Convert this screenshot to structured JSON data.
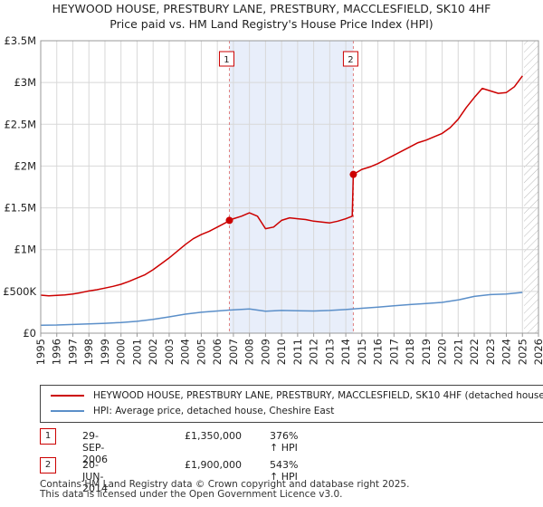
{
  "title_line1": "HEYWOOD HOUSE, PRESTBURY LANE, PRESTBURY, MACCLESFIELD, SK10 4HF",
  "title_line2": "Price paid vs. HM Land Registry's House Price Index (HPI)",
  "chart_data": {
    "type": "line",
    "xlim": [
      1995,
      2026
    ],
    "ylim": [
      0,
      3500000
    ],
    "yticks": [
      {
        "value": 0,
        "label": "£0"
      },
      {
        "value": 500000,
        "label": "£500K"
      },
      {
        "value": 1000000,
        "label": "£1M"
      },
      {
        "value": 1500000,
        "label": "£1.5M"
      },
      {
        "value": 2000000,
        "label": "£2M"
      },
      {
        "value": 2500000,
        "label": "£2.5M"
      },
      {
        "value": 3000000,
        "label": "£3M"
      },
      {
        "value": 3500000,
        "label": "£3.5M"
      }
    ],
    "xticks": [
      "1995",
      "1996",
      "1997",
      "1998",
      "1999",
      "2000",
      "2001",
      "2002",
      "2003",
      "2004",
      "2005",
      "2006",
      "2007",
      "2008",
      "2009",
      "2010",
      "2011",
      "2012",
      "2013",
      "2014",
      "2015",
      "2016",
      "2017",
      "2018",
      "2019",
      "2020",
      "2021",
      "2022",
      "2023",
      "2024",
      "2025",
      "2026"
    ],
    "shaded_span": [
      2006.75,
      2014.47
    ],
    "future_hatch_from": 2025.1,
    "series": [
      {
        "name": "HEYWOOD HOUSE, PRESTBURY LANE, PRESTBURY, MACCLESFIELD, SK10 4HF (detached house)",
        "color": "#cc0000",
        "points": [
          [
            1995.0,
            455000
          ],
          [
            1995.5,
            448000
          ],
          [
            1996.0,
            452000
          ],
          [
            1996.5,
            458000
          ],
          [
            1997.0,
            468000
          ],
          [
            1997.5,
            485000
          ],
          [
            1998.0,
            505000
          ],
          [
            1998.5,
            520000
          ],
          [
            1999.0,
            540000
          ],
          [
            1999.5,
            560000
          ],
          [
            2000.0,
            585000
          ],
          [
            2000.5,
            620000
          ],
          [
            2001.0,
            660000
          ],
          [
            2001.5,
            700000
          ],
          [
            2002.0,
            760000
          ],
          [
            2002.5,
            830000
          ],
          [
            2003.0,
            900000
          ],
          [
            2003.5,
            980000
          ],
          [
            2004.0,
            1060000
          ],
          [
            2004.5,
            1130000
          ],
          [
            2005.0,
            1180000
          ],
          [
            2005.5,
            1220000
          ],
          [
            2006.0,
            1270000
          ],
          [
            2006.5,
            1320000
          ],
          [
            2006.75,
            1350000
          ],
          [
            2007.0,
            1370000
          ],
          [
            2007.5,
            1400000
          ],
          [
            2008.0,
            1440000
          ],
          [
            2008.5,
            1400000
          ],
          [
            2009.0,
            1250000
          ],
          [
            2009.5,
            1270000
          ],
          [
            2010.0,
            1350000
          ],
          [
            2010.5,
            1380000
          ],
          [
            2011.0,
            1370000
          ],
          [
            2011.5,
            1360000
          ],
          [
            2012.0,
            1340000
          ],
          [
            2012.5,
            1330000
          ],
          [
            2013.0,
            1320000
          ],
          [
            2013.5,
            1340000
          ],
          [
            2014.0,
            1370000
          ],
          [
            2014.4,
            1400000
          ],
          [
            2014.47,
            1900000
          ],
          [
            2015.0,
            1960000
          ],
          [
            2015.5,
            1990000
          ],
          [
            2016.0,
            2030000
          ],
          [
            2016.5,
            2080000
          ],
          [
            2017.0,
            2130000
          ],
          [
            2017.5,
            2180000
          ],
          [
            2018.0,
            2230000
          ],
          [
            2018.5,
            2280000
          ],
          [
            2019.0,
            2310000
          ],
          [
            2019.5,
            2350000
          ],
          [
            2020.0,
            2390000
          ],
          [
            2020.5,
            2460000
          ],
          [
            2021.0,
            2560000
          ],
          [
            2021.5,
            2700000
          ],
          [
            2022.0,
            2820000
          ],
          [
            2022.5,
            2930000
          ],
          [
            2023.0,
            2900000
          ],
          [
            2023.5,
            2870000
          ],
          [
            2024.0,
            2880000
          ],
          [
            2024.5,
            2950000
          ],
          [
            2025.0,
            3080000
          ]
        ]
      },
      {
        "name": "HPI: Average price, detached house, Cheshire East",
        "color": "#5b8fc9",
        "points": [
          [
            1995.0,
            95000
          ],
          [
            1996.0,
            98000
          ],
          [
            1997.0,
            104000
          ],
          [
            1998.0,
            110000
          ],
          [
            1999.0,
            118000
          ],
          [
            2000.0,
            128000
          ],
          [
            2001.0,
            142000
          ],
          [
            2002.0,
            165000
          ],
          [
            2003.0,
            195000
          ],
          [
            2004.0,
            228000
          ],
          [
            2005.0,
            250000
          ],
          [
            2006.0,
            265000
          ],
          [
            2007.0,
            280000
          ],
          [
            2008.0,
            290000
          ],
          [
            2009.0,
            262000
          ],
          [
            2010.0,
            272000
          ],
          [
            2011.0,
            268000
          ],
          [
            2012.0,
            266000
          ],
          [
            2013.0,
            272000
          ],
          [
            2014.0,
            283000
          ],
          [
            2015.0,
            298000
          ],
          [
            2016.0,
            312000
          ],
          [
            2017.0,
            328000
          ],
          [
            2018.0,
            342000
          ],
          [
            2019.0,
            355000
          ],
          [
            2020.0,
            368000
          ],
          [
            2021.0,
            398000
          ],
          [
            2022.0,
            440000
          ],
          [
            2023.0,
            462000
          ],
          [
            2024.0,
            468000
          ],
          [
            2025.0,
            488000
          ]
        ]
      }
    ],
    "sales": [
      {
        "marker": "1",
        "date": "29-SEP-2006",
        "x": 2006.75,
        "price": 1350000,
        "price_label": "£1,350,000",
        "hpi": "376% ↑ HPI"
      },
      {
        "marker": "2",
        "date": "20-JUN-2014",
        "x": 2014.47,
        "price": 1900000,
        "price_label": "£1,900,000",
        "hpi": "543% ↑ HPI"
      }
    ]
  },
  "footer": {
    "line1": "Contains HM Land Registry data © Crown copyright and database right 2025.",
    "line2": "This data is licensed under the Open Government Licence v3.0."
  }
}
